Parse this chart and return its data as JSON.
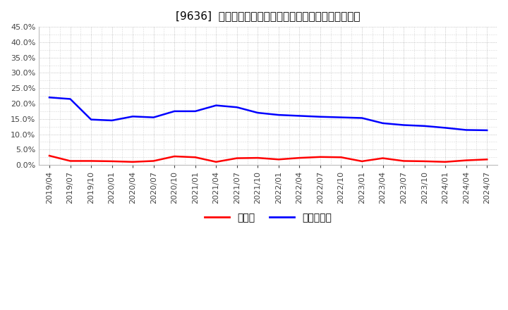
{
  "title": "[9636]  現顔金、有利子負債の総資産に対する比率の推移",
  "ylim": [
    0.0,
    0.45
  ],
  "yticks": [
    0.0,
    0.05,
    0.1,
    0.15,
    0.2,
    0.25,
    0.3,
    0.35,
    0.4,
    0.45
  ],
  "dates": [
    "2019/04",
    "2019/07",
    "2019/10",
    "2020/01",
    "2020/04",
    "2020/07",
    "2020/10",
    "2021/01",
    "2021/04",
    "2021/07",
    "2021/10",
    "2022/01",
    "2022/04",
    "2022/07",
    "2022/10",
    "2023/01",
    "2023/04",
    "2023/07",
    "2023/10",
    "2024/01",
    "2024/04",
    "2024/07"
  ],
  "cash": [
    0.03,
    0.013,
    0.013,
    0.012,
    0.01,
    0.013,
    0.028,
    0.025,
    0.01,
    0.022,
    0.023,
    0.018,
    0.023,
    0.026,
    0.025,
    0.012,
    0.022,
    0.013,
    0.012,
    0.01,
    0.015,
    0.018
  ],
  "debt": [
    0.22,
    0.215,
    0.148,
    0.145,
    0.158,
    0.155,
    0.175,
    0.175,
    0.194,
    0.188,
    0.17,
    0.163,
    0.16,
    0.157,
    0.155,
    0.153,
    0.136,
    0.13,
    0.127,
    0.121,
    0.114,
    0.113
  ],
  "cash_color": "#ff0000",
  "debt_color": "#0000ff",
  "background_color": "#ffffff",
  "grid_color": "#999999",
  "title_fontsize": 11,
  "tick_fontsize": 8,
  "legend_labels": [
    "現顔金",
    "有利子負債"
  ]
}
